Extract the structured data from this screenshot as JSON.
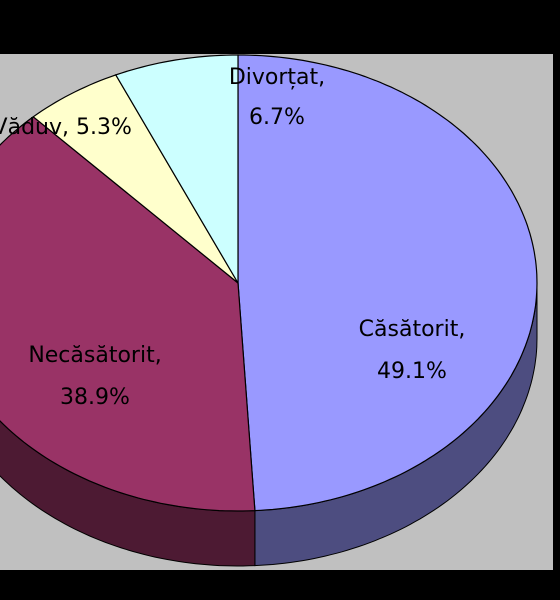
{
  "chart_data": {
    "type": "pie3d",
    "categories": [
      "Căsătorit,",
      "Necăsătorit,",
      "Văduv,",
      "Divorțat,"
    ],
    "values": [
      49.1,
      38.9,
      5.3,
      6.7
    ],
    "value_labels": [
      "49.1%",
      "38.9%",
      "5.3%",
      "6.7%"
    ],
    "colors": [
      "#9999ff",
      "#993366",
      "#ffffcc",
      "#ccffff"
    ]
  }
}
